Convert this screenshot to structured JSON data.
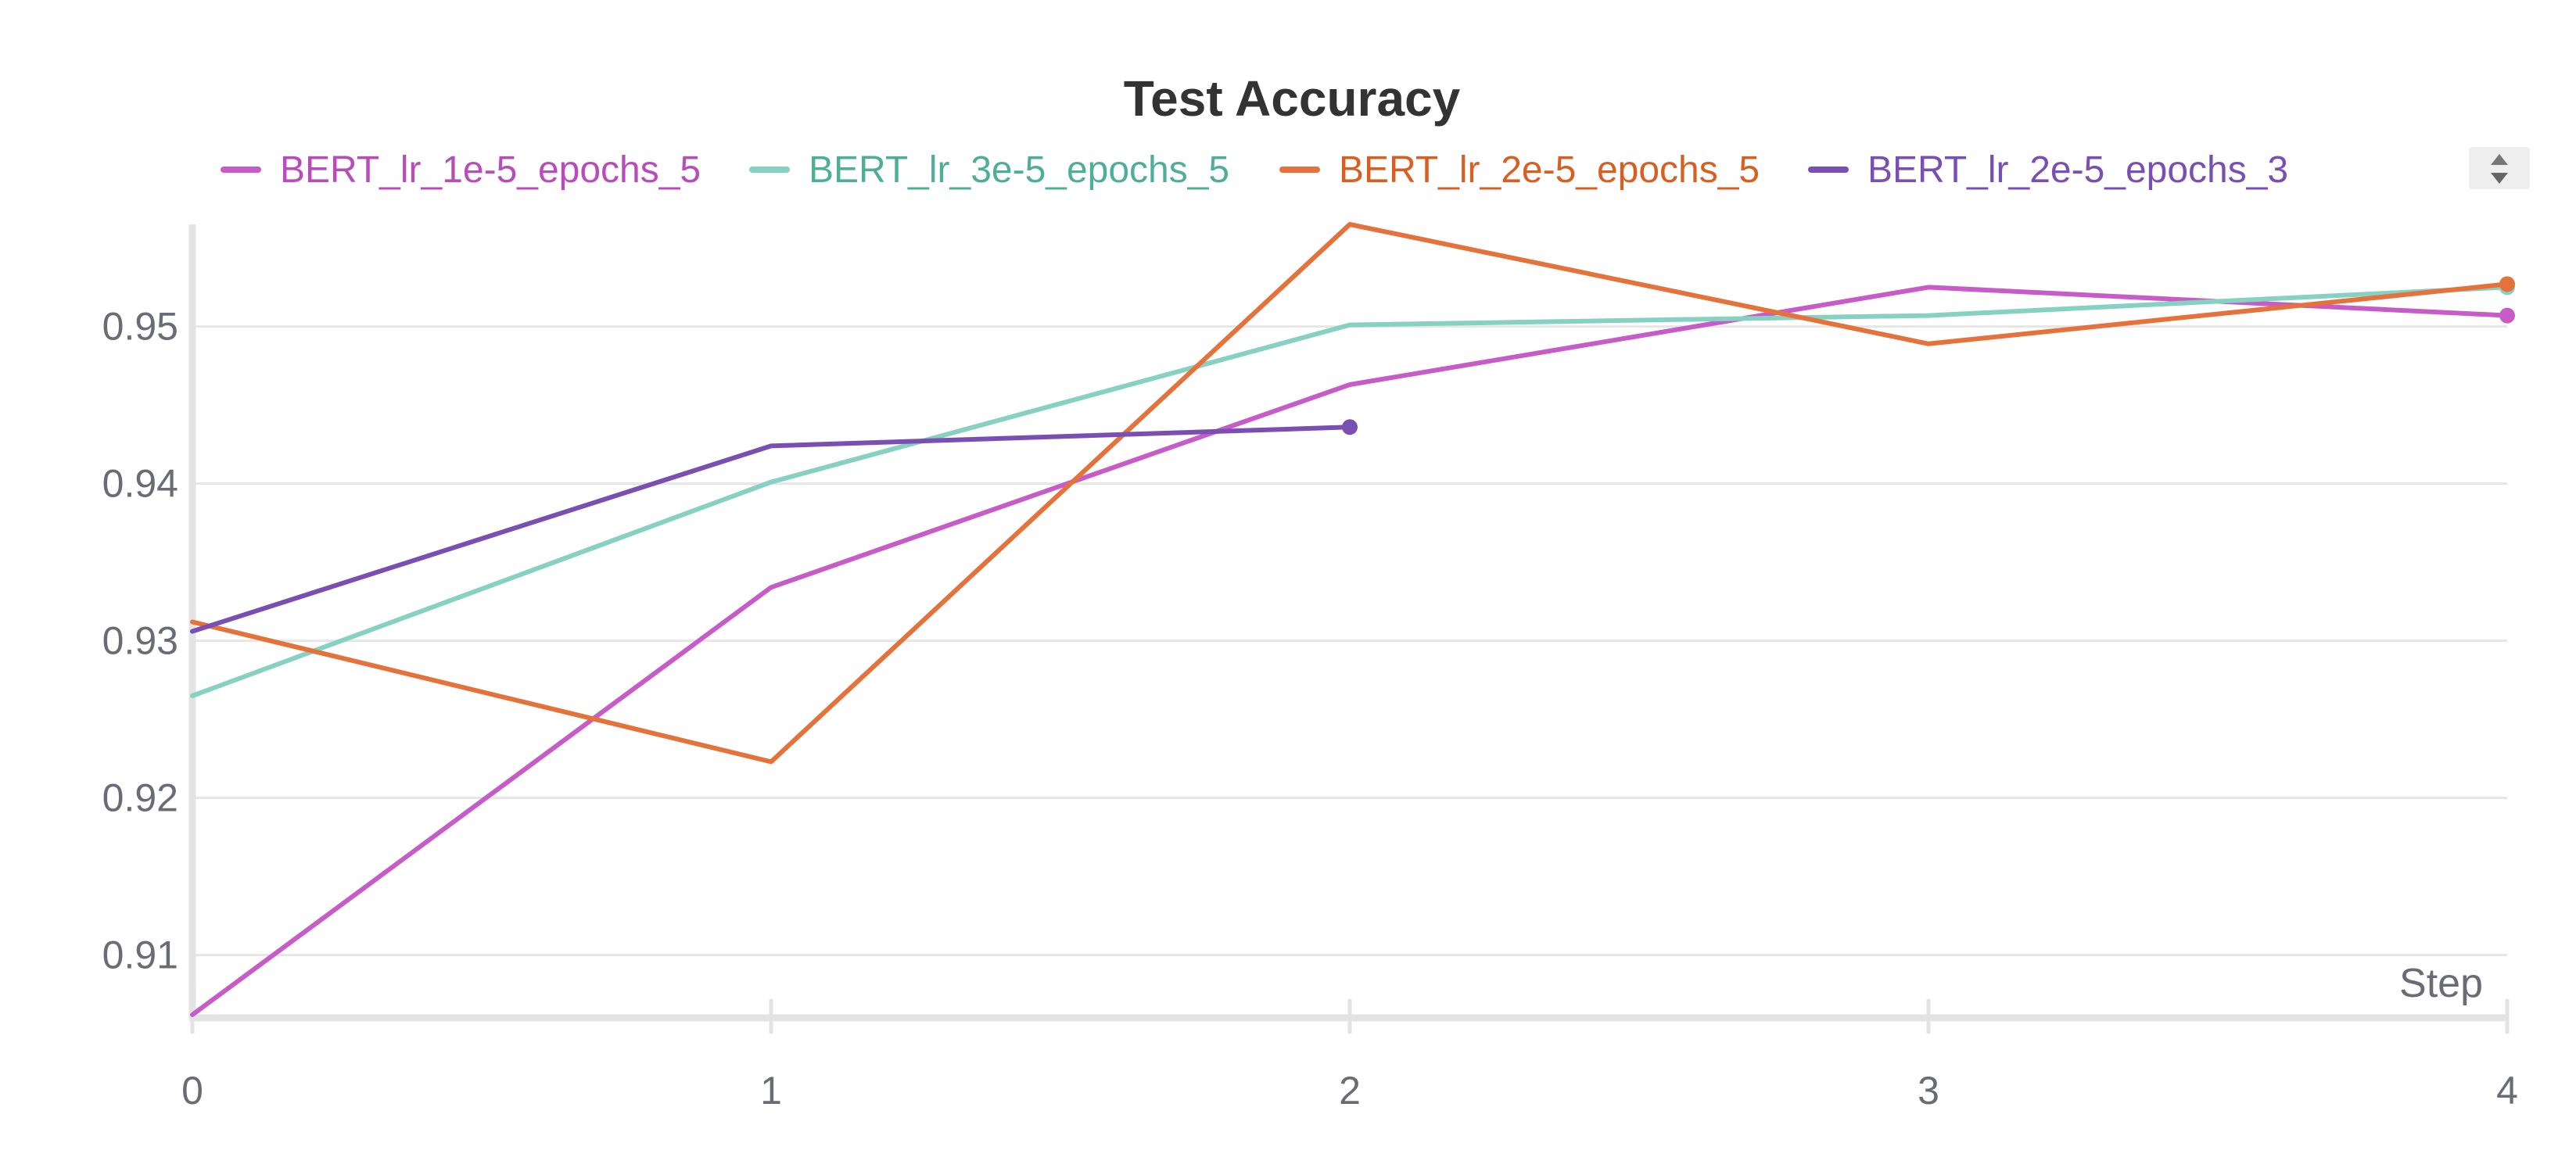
{
  "chart_data": {
    "type": "line",
    "title": "Test Accuracy",
    "xlabel": "Step",
    "ylabel": "",
    "x": [
      0,
      1,
      2,
      3,
      4
    ],
    "xlim": [
      0,
      4
    ],
    "ylim": [
      0.906,
      0.9565
    ],
    "x_ticks": [
      "0",
      "1",
      "2",
      "3",
      "4"
    ],
    "y_ticks": [
      {
        "value": 0.91,
        "label": "0.91"
      },
      {
        "value": 0.92,
        "label": "0.92"
      },
      {
        "value": 0.93,
        "label": "0.93"
      },
      {
        "value": 0.94,
        "label": "0.94"
      },
      {
        "value": 0.95,
        "label": "0.95"
      }
    ],
    "grid": true,
    "legend_position": "top",
    "series": [
      {
        "name": "BERT_lr_1e-5_epochs_5",
        "color": "#c75cc9",
        "text_color": "#b84cbb",
        "x": [
          0,
          1,
          2,
          3,
          4
        ],
        "values": [
          0.9062,
          0.9334,
          0.9463,
          0.9525,
          0.9507
        ]
      },
      {
        "name": "BERT_lr_3e-5_epochs_5",
        "color": "#87d1c2",
        "text_color": "#4fae9a",
        "x": [
          0,
          1,
          2,
          3,
          4
        ],
        "values": [
          0.9265,
          0.9401,
          0.9501,
          0.9507,
          0.9525
        ]
      },
      {
        "name": "BERT_lr_2e-5_epochs_5",
        "color": "#e5723a",
        "text_color": "#d85f22",
        "x": [
          0,
          1,
          2,
          3,
          4
        ],
        "values": [
          0.9312,
          0.9223,
          0.9565,
          0.9489,
          0.9527
        ]
      },
      {
        "name": "BERT_lr_2e-5_epochs_3",
        "color": "#7a4fb3",
        "text_color": "#7a4fb3",
        "x": [
          0,
          1,
          2
        ],
        "values": [
          0.9306,
          0.9424,
          0.9436
        ]
      }
    ]
  },
  "controls": {
    "legend_scroll_icon": "up-down-arrows-icon"
  }
}
